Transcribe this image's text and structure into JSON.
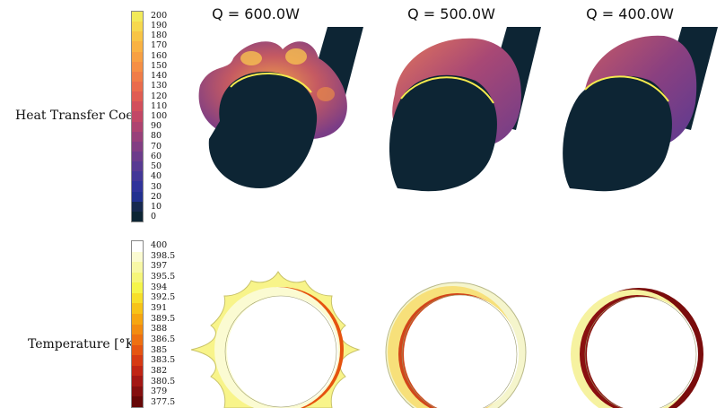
{
  "htc_label": "Heat Transfer Coef.",
  "temp_label": "Temperature [°K]",
  "columns": [
    {
      "title": "Q = 600.0W"
    },
    {
      "title": "Q = 500.0W"
    },
    {
      "title": "Q = 400.0W"
    }
  ],
  "htc_ticks": [
    "200",
    "190",
    "180",
    "170",
    "160",
    "150",
    "140",
    "130",
    "120",
    "110",
    "100",
    "90",
    "80",
    "70",
    "60",
    "50",
    "40",
    "30",
    "20",
    "10",
    "0"
  ],
  "htc_colors": [
    "#f2ea5a",
    "#f6d84e",
    "#f8c445",
    "#f9b243",
    "#f7a043",
    "#f58f45",
    "#f07d48",
    "#ea6c4d",
    "#e05d53",
    "#d24f5c",
    "#c24766",
    "#ae4370",
    "#98407a",
    "#823e83",
    "#6c3c8b",
    "#583a92",
    "#433797",
    "#30339a",
    "#22308f",
    "#17294f",
    "#0d2534"
  ],
  "temp_ticks": [
    "400",
    "398.5",
    "397",
    "395.5",
    "394",
    "392.5",
    "391",
    "389.5",
    "388",
    "386.5",
    "385",
    "383.5",
    "382",
    "380.5",
    "379",
    "377.5"
  ],
  "temp_colors": [
    "#ffffff",
    "#fbfbd2",
    "#f8f8a6",
    "#f6f67a",
    "#f5f54a",
    "#f7df2a",
    "#f7c318",
    "#f6a611",
    "#f38c10",
    "#ee7011",
    "#e55512",
    "#d63a14",
    "#c02515",
    "#a31714",
    "#840f0f",
    "#660808"
  ]
}
